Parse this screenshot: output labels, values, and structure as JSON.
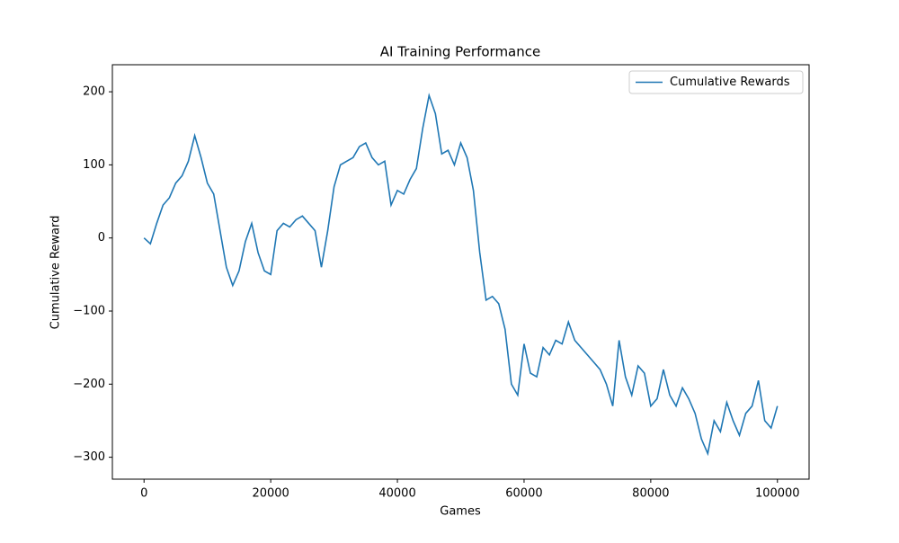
{
  "chart_data": {
    "type": "line",
    "title": "AI Training Performance",
    "xlabel": "Games",
    "ylabel": "Cumulative Reward",
    "x": [
      0,
      1000,
      2000,
      3000,
      4000,
      5000,
      6000,
      7000,
      8000,
      9000,
      10000,
      11000,
      12000,
      13000,
      14000,
      15000,
      16000,
      17000,
      18000,
      19000,
      20000,
      21000,
      22000,
      23000,
      24000,
      25000,
      26000,
      27000,
      28000,
      29000,
      30000,
      31000,
      32000,
      33000,
      34000,
      35000,
      36000,
      37000,
      38000,
      39000,
      40000,
      41000,
      42000,
      43000,
      44000,
      45000,
      46000,
      47000,
      48000,
      49000,
      50000,
      51000,
      52000,
      53000,
      54000,
      55000,
      56000,
      57000,
      58000,
      59000,
      60000,
      61000,
      62000,
      63000,
      64000,
      65000,
      66000,
      67000,
      68000,
      69000,
      70000,
      71000,
      72000,
      73000,
      74000,
      75000,
      76000,
      77000,
      78000,
      79000,
      80000,
      81000,
      82000,
      83000,
      84000,
      85000,
      86000,
      87000,
      88000,
      89000,
      90000,
      91000,
      92000,
      93000,
      94000,
      95000,
      96000,
      97000,
      98000,
      99000,
      100000
    ],
    "series": [
      {
        "name": "Cumulative Rewards",
        "color": "#1f77b4",
        "values": [
          0,
          -8,
          20,
          45,
          55,
          75,
          85,
          105,
          140,
          110,
          75,
          60,
          10,
          -40,
          -65,
          -45,
          -5,
          20,
          -20,
          -45,
          -50,
          10,
          20,
          15,
          25,
          30,
          20,
          10,
          -40,
          10,
          70,
          100,
          105,
          110,
          125,
          130,
          110,
          100,
          105,
          45,
          65,
          60,
          80,
          95,
          150,
          195,
          170,
          115,
          120,
          100,
          130,
          110,
          65,
          -20,
          -85,
          -80,
          -90,
          -125,
          -200,
          -215,
          -145,
          -185,
          -190,
          -150,
          -160,
          -140,
          -145,
          -115,
          -140,
          -150,
          -160,
          -170,
          -180,
          -200,
          -230,
          -140,
          -190,
          -215,
          -175,
          -185,
          -230,
          -220,
          -180,
          -215,
          -230,
          -205,
          -220,
          -240,
          -275,
          -295,
          -250,
          -265,
          -225,
          -250,
          -270,
          -240,
          -230,
          -195,
          -250,
          -260,
          -230
        ]
      }
    ],
    "xlim": [
      -5000,
      105000
    ],
    "ylim": [
      -330,
      237
    ],
    "xticks": [
      0,
      20000,
      40000,
      60000,
      80000,
      100000
    ],
    "yticks": [
      {
        "value": -300,
        "label": "−300"
      },
      {
        "value": -200,
        "label": "−200"
      },
      {
        "value": -100,
        "label": "−100"
      },
      0,
      100,
      200
    ],
    "legend": "upper right"
  }
}
